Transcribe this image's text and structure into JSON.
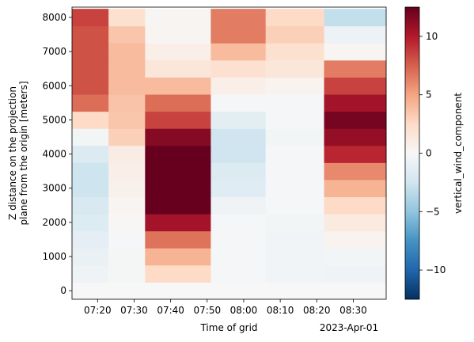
{
  "chart_data": {
    "type": "heatmap",
    "xlabel": "Time of grid",
    "x_offset_label": "2023-Apr-01",
    "ylabel_line1": "Z distance on the projection",
    "ylabel_line2": "plane from the origin [meters]",
    "colorbar_label": "vertical_wind_component",
    "colormap": "RdBu_r",
    "clim": [
      -12.5,
      12.5
    ],
    "xlim": [
      "07:13",
      "08:39"
    ],
    "ylim": [
      -250,
      8300
    ],
    "x_ticks": [
      "07:20",
      "07:30",
      "07:40",
      "07:50",
      "08:00",
      "08:10",
      "08:20",
      "08:30"
    ],
    "y_ticks": [
      0,
      1000,
      2000,
      3000,
      4000,
      5000,
      6000,
      7000,
      8000
    ],
    "colorbar_ticks": [
      10,
      5,
      0,
      -5,
      -10
    ],
    "column_edges": [
      "07:13",
      "07:23",
      "07:33",
      "07:51",
      "08:06",
      "08:22",
      "08:39"
    ],
    "row_edges": [
      250,
      750,
      1250,
      1750,
      2250,
      2750,
      3250,
      3750,
      4250,
      4750,
      5250,
      5750,
      6250,
      6750,
      7250,
      7750,
      8250
    ],
    "nodata_rows": [
      [
        -250,
        250
      ]
    ],
    "values": [
      [
        -0.6,
        -0.2,
        2.5,
        -0.1,
        -0.4,
        -0.5
      ],
      [
        -0.9,
        -0.2,
        4.3,
        -0.1,
        -0.4,
        -0.3
      ],
      [
        -1.2,
        -0.1,
        6.8,
        -0.1,
        -0.4,
        0.4
      ],
      [
        -1.7,
        0.1,
        10.5,
        -0.1,
        -0.3,
        1.2
      ],
      [
        -2.0,
        0.3,
        13.0,
        -0.5,
        -0.1,
        2.5
      ],
      [
        -2.6,
        0.6,
        14.5,
        -1.5,
        -0.1,
        4.3
      ],
      [
        -2.6,
        0.8,
        14.5,
        -1.8,
        -0.1,
        6.0
      ],
      [
        -1.8,
        1.0,
        12.5,
        -2.5,
        -0.1,
        9.5
      ],
      [
        -0.3,
        3.0,
        11.5,
        -2.5,
        -0.3,
        11.0
      ],
      [
        2.5,
        3.5,
        8.5,
        -1.3,
        -0.1,
        12.0
      ],
      [
        7.0,
        3.6,
        7.0,
        -0.1,
        -0.1,
        10.5
      ],
      [
        8.0,
        4.0,
        4.0,
        0.8,
        0.4,
        8.5
      ],
      [
        8.0,
        4.0,
        1.5,
        2.0,
        1.5,
        6.5
      ],
      [
        8.0,
        4.0,
        0.8,
        4.0,
        2.0,
        0.3
      ],
      [
        8.0,
        3.5,
        0.3,
        6.5,
        3.0,
        -0.7
      ],
      [
        8.5,
        2.0,
        0.2,
        6.5,
        2.5,
        -3.0
      ]
    ]
  }
}
